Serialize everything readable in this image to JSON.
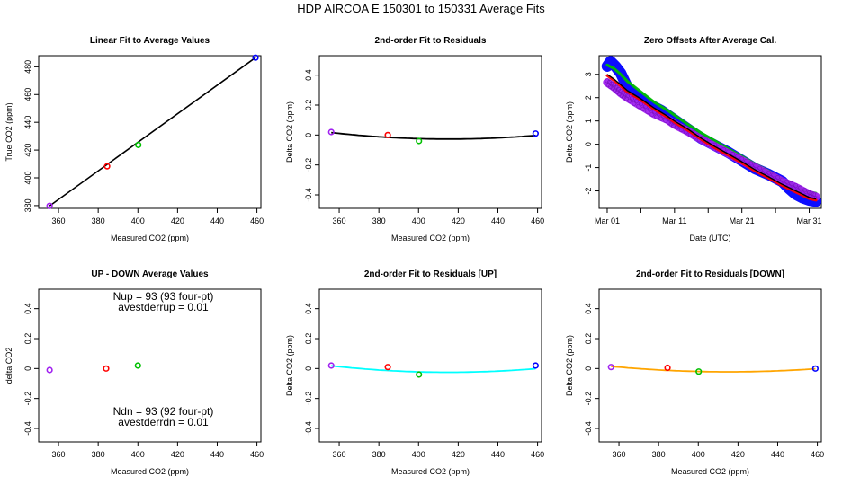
{
  "figure_title": "HDP    AIRCOA E    150301 to 150331    Average Fits",
  "colors": {
    "purple": "#a020f0",
    "red": "#ff0000",
    "green": "#00c000",
    "blue": "#0000ff",
    "black": "#000000",
    "cyan": "#00ffff",
    "orange": "#ffa500"
  },
  "chart_data": [
    {
      "id": "p1",
      "type": "scatter",
      "title": "Linear Fit to Average Values",
      "xlabel": "Measured CO2 (ppm)",
      "ylabel": "True CO2 (ppm)",
      "xlim": [
        350,
        462
      ],
      "ylim": [
        378,
        488
      ],
      "xticks": [
        360,
        380,
        400,
        420,
        440,
        460
      ],
      "yticks": [
        380,
        400,
        420,
        440,
        460,
        480
      ],
      "points": [
        {
          "x": 355.5,
          "y": 379.8,
          "color": "purple"
        },
        {
          "x": 384.5,
          "y": 408.3,
          "color": "red"
        },
        {
          "x": 400.2,
          "y": 423.7,
          "color": "green"
        },
        {
          "x": 459.3,
          "y": 486.6,
          "color": "blue"
        }
      ],
      "fit": {
        "kind": "line",
        "color": "black",
        "x0": 355.5,
        "y0": 379.8,
        "x1": 459.3,
        "y1": 486.6
      }
    },
    {
      "id": "p2",
      "type": "scatter",
      "title": "2nd-order Fit to Residuals",
      "xlabel": "Measured CO2 (ppm)",
      "ylabel": "Delta CO2 (ppm)",
      "xlim": [
        350,
        462
      ],
      "ylim": [
        -0.49,
        0.53
      ],
      "xticks": [
        360,
        380,
        400,
        420,
        440,
        460
      ],
      "yticks": [
        -0.4,
        -0.2,
        0.0,
        0.2,
        0.4
      ],
      "points": [
        {
          "x": 356,
          "y": 0.02,
          "color": "purple"
        },
        {
          "x": 384.5,
          "y": 0.0,
          "color": "red"
        },
        {
          "x": 400.2,
          "y": -0.04,
          "color": "green"
        },
        {
          "x": 459,
          "y": 0.01,
          "color": "blue"
        }
      ],
      "fit": {
        "kind": "quad",
        "color": "black",
        "from": 356,
        "to": 459,
        "vertex": 415,
        "min": -0.027,
        "a": 1.25e-05
      }
    },
    {
      "id": "p3",
      "type": "line",
      "title": "Zero Offsets After Average Cal.",
      "xlabel": "Date (UTC)",
      "ylabel": "Delta CO2 (ppm)",
      "xlim": [
        -1.2,
        31.8
      ],
      "ylim": [
        -2.75,
        3.8
      ],
      "xticks": [
        0,
        10,
        20,
        30
      ],
      "xticklabels": [
        "Mar 01",
        "Mar 11",
        "Mar 21",
        "Mar 31"
      ],
      "minor_xticks": [
        5,
        15,
        25
      ],
      "yticks": [
        -2,
        -1,
        0,
        1,
        2,
        3
      ],
      "series": [
        {
          "name": "blue",
          "color": "blue",
          "offset": 0.05,
          "band": 0.24,
          "x": [
            0,
            0.5,
            1.2,
            2,
            3,
            4,
            5,
            6,
            7,
            8,
            9,
            10,
            12,
            14,
            16,
            18,
            20,
            22,
            24,
            26,
            27,
            28,
            29,
            30,
            31
          ],
          "y": [
            3.3,
            3.5,
            3.3,
            3.0,
            2.4,
            2.1,
            1.95,
            1.7,
            1.55,
            1.4,
            1.2,
            1.0,
            0.6,
            0.2,
            -0.1,
            -0.4,
            -0.75,
            -1.1,
            -1.35,
            -1.65,
            -1.95,
            -2.2,
            -2.35,
            -2.45,
            -2.5
          ]
        },
        {
          "name": "green",
          "color": "green",
          "offset": 0.2,
          "band": 0.06,
          "x": [
            0,
            1,
            2,
            3,
            5,
            7,
            9,
            10,
            12,
            14,
            16,
            18,
            20,
            22,
            24,
            26,
            28,
            30,
            31
          ],
          "y": [
            3.2,
            3.05,
            2.8,
            2.5,
            2.05,
            1.6,
            1.25,
            1.05,
            0.65,
            0.28,
            -0.05,
            -0.4,
            -0.72,
            -1.05,
            -1.35,
            -1.7,
            -2.0,
            -2.25,
            -2.3
          ]
        },
        {
          "name": "purple",
          "color": "purple",
          "offset": -0.15,
          "band": 0.18,
          "x": [
            0,
            1,
            2,
            3,
            5,
            7,
            9,
            10,
            12,
            14,
            16,
            18,
            20,
            22,
            24,
            26,
            28,
            30,
            31
          ],
          "y": [
            2.8,
            2.6,
            2.35,
            2.15,
            1.8,
            1.45,
            1.2,
            1.0,
            0.7,
            0.35,
            0.05,
            -0.25,
            -0.55,
            -0.85,
            -1.15,
            -1.45,
            -1.7,
            -2.0,
            -2.1
          ]
        },
        {
          "name": "red",
          "color": "red",
          "offset": -0.05,
          "band": 0.06,
          "x": [
            0,
            1,
            2,
            3,
            5,
            7,
            9,
            10,
            12,
            14,
            16,
            18,
            20,
            22,
            24,
            26,
            28,
            30,
            31
          ],
          "y": [
            3.0,
            2.8,
            2.55,
            2.3,
            1.95,
            1.55,
            1.2,
            1.0,
            0.65,
            0.25,
            -0.1,
            -0.42,
            -0.75,
            -1.1,
            -1.4,
            -1.72,
            -2.0,
            -2.28,
            -2.35
          ]
        },
        {
          "name": "black",
          "color": "black",
          "offset": 0.0,
          "band": 0.0,
          "x": [
            0,
            1,
            2,
            3,
            5,
            7,
            9,
            10,
            12,
            14,
            16,
            18,
            20,
            22,
            24,
            26,
            28,
            30,
            31
          ],
          "y": [
            3.0,
            2.8,
            2.55,
            2.3,
            1.95,
            1.55,
            1.2,
            1.0,
            0.65,
            0.25,
            -0.1,
            -0.42,
            -0.75,
            -1.1,
            -1.4,
            -1.72,
            -2.0,
            -2.28,
            -2.35
          ]
        }
      ]
    },
    {
      "id": "p4",
      "type": "scatter",
      "title": "UP - DOWN Average Values",
      "xlabel": "Measured CO2 (ppm)",
      "ylabel": "delta CO2",
      "xlim": [
        350,
        462
      ],
      "ylim": [
        -0.49,
        0.53
      ],
      "xticks": [
        360,
        380,
        400,
        420,
        440,
        460
      ],
      "yticks": [
        -0.4,
        -0.2,
        0.0,
        0.2,
        0.4
      ],
      "points": [
        {
          "x": 355.5,
          "y": -0.01,
          "color": "purple"
        },
        {
          "x": 384,
          "y": 0.0,
          "color": "red"
        },
        {
          "x": 400,
          "y": 0.02,
          "color": "green"
        }
      ],
      "annotations": [
        {
          "text": "Nup = 93 (93 four-pt)",
          "pos": "top"
        },
        {
          "text": "avestderrup =  0.01",
          "pos": "top"
        },
        {
          "text": "Ndn = 93 (92 four-pt)",
          "pos": "bottom"
        },
        {
          "text": "avestderrdn =  0.01",
          "pos": "bottom"
        }
      ]
    },
    {
      "id": "p5",
      "type": "scatter",
      "title": "2nd-order Fit to Residuals [UP]",
      "xlabel": "Measured CO2 (ppm)",
      "ylabel": "Delta CO2 (ppm)",
      "xlim": [
        350,
        462
      ],
      "ylim": [
        -0.49,
        0.53
      ],
      "xticks": [
        360,
        380,
        400,
        420,
        440,
        460
      ],
      "yticks": [
        -0.4,
        -0.2,
        0.0,
        0.2,
        0.4
      ],
      "points": [
        {
          "x": 356,
          "y": 0.02,
          "color": "purple"
        },
        {
          "x": 384.5,
          "y": 0.01,
          "color": "red"
        },
        {
          "x": 400.2,
          "y": -0.04,
          "color": "green"
        },
        {
          "x": 459,
          "y": 0.02,
          "color": "blue"
        }
      ],
      "fit": {
        "kind": "quad",
        "color": "cyan",
        "from": 356,
        "to": 459,
        "vertex": 415,
        "min": -0.025,
        "a": 1.25e-05
      }
    },
    {
      "id": "p6",
      "type": "scatter",
      "title": "2nd-order Fit to Residuals [DOWN]",
      "xlabel": "Measured CO2 (ppm)",
      "ylabel": "Delta CO2 (ppm)",
      "xlim": [
        350,
        462
      ],
      "ylim": [
        -0.49,
        0.53
      ],
      "xticks": [
        360,
        380,
        400,
        420,
        440,
        460
      ],
      "yticks": [
        -0.4,
        -0.2,
        0.0,
        0.2,
        0.4
      ],
      "points": [
        {
          "x": 356,
          "y": 0.01,
          "color": "purple"
        },
        {
          "x": 384.5,
          "y": 0.005,
          "color": "red"
        },
        {
          "x": 400.2,
          "y": -0.02,
          "color": "green"
        },
        {
          "x": 459,
          "y": 0.0,
          "color": "blue"
        }
      ],
      "fit": {
        "kind": "quad",
        "color": "orange",
        "from": 356,
        "to": 459,
        "vertex": 415,
        "min": -0.022,
        "a": 1.05e-05
      }
    }
  ]
}
